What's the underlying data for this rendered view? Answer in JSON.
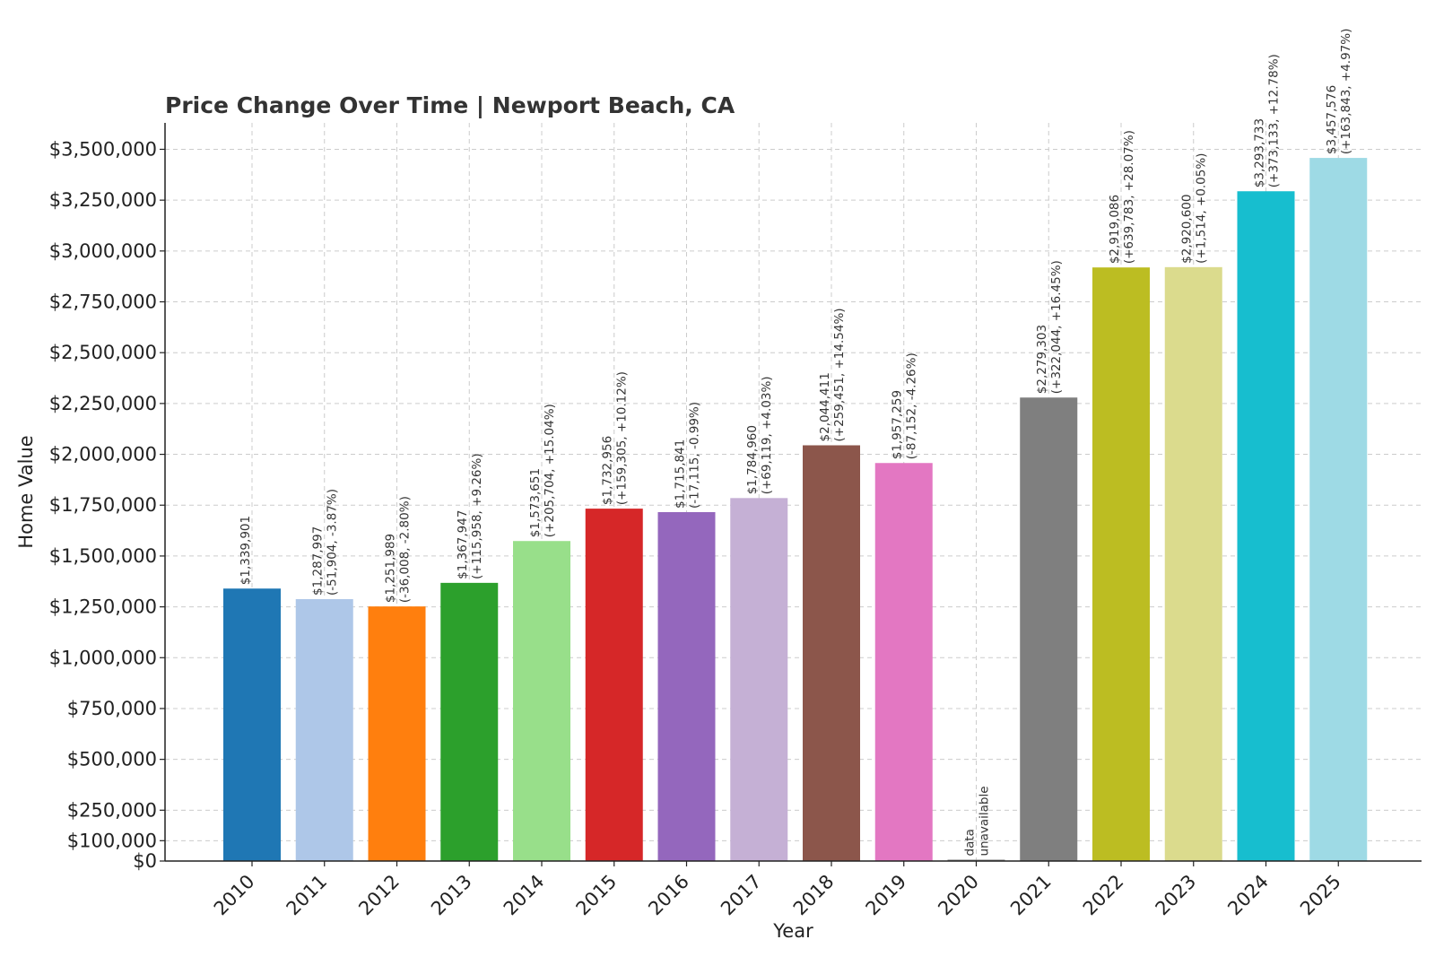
{
  "chart_data": {
    "type": "bar",
    "title": "Price Change Over Time | Newport Beach, CA",
    "xlabel": "Year",
    "ylabel": "Home Value",
    "categories": [
      "2010",
      "2011",
      "2012",
      "2013",
      "2014",
      "2015",
      "2016",
      "2017",
      "2018",
      "2019",
      "2020",
      "2021",
      "2022",
      "2023",
      "2024",
      "2025"
    ],
    "values": [
      1339901,
      1287997,
      1251989,
      1367947,
      1573651,
      1732956,
      1715841,
      1784960,
      2044411,
      1957259,
      null,
      2279303,
      2919086,
      2920600,
      3293733,
      3457576
    ],
    "value_labels": [
      "$1,339,901",
      "$1,287,997",
      "$1,251,989",
      "$1,367,947",
      "$1,573,651",
      "$1,732,956",
      "$1,715,841",
      "$1,784,960",
      "$2,044,411",
      "$1,957,259",
      "data",
      "$2,279,303",
      "$2,919,086",
      "$2,920,600",
      "$3,293,733",
      "$3,457,576"
    ],
    "change_labels": [
      "",
      "(-51,904, -3.87%)",
      "(-36,008, -2.80%)",
      "(+115,958, +9.26%)",
      "(+205,704, +15.04%)",
      "(+159,305, +10.12%)",
      "(-17,115, -0.99%)",
      "(+69,119, +4.03%)",
      "(+259,451, +14.54%)",
      "(-87,152, -4.26%)",
      "unavailable",
      "(+322,044, +16.45%)",
      "(+639,783, +28.07%)",
      "(+1,514, +0.05%)",
      "(+373,133, +12.78%)",
      "(+163,843, +4.97%)"
    ],
    "colors": [
      "#1f77b4",
      "#aec7e8",
      "#ff7f0e",
      "#2ca02c",
      "#98df8a",
      "#d62728",
      "#9467bd",
      "#c5b0d5",
      "#8c564b",
      "#e377c2",
      "#7f7f7f",
      "#7f7f7f",
      "#bcbd22",
      "#dbdb8d",
      "#17becf",
      "#9edae5"
    ],
    "yticks": [
      0,
      100000,
      250000,
      500000,
      750000,
      1000000,
      1250000,
      1500000,
      1750000,
      2000000,
      2250000,
      2500000,
      2750000,
      3000000,
      3250000,
      3500000
    ],
    "ytick_labels": [
      "$0",
      "$100,000",
      "$250,000",
      "$500,000",
      "$750,000",
      "$1,000,000",
      "$1,250,000",
      "$1,500,000",
      "$1,750,000",
      "$2,000,000",
      "$2,250,000",
      "$2,500,000",
      "$2,750,000",
      "$3,000,000",
      "$3,250,000",
      "$3,500,000"
    ],
    "ylim": [
      0,
      3630000
    ],
    "grid": true
  }
}
